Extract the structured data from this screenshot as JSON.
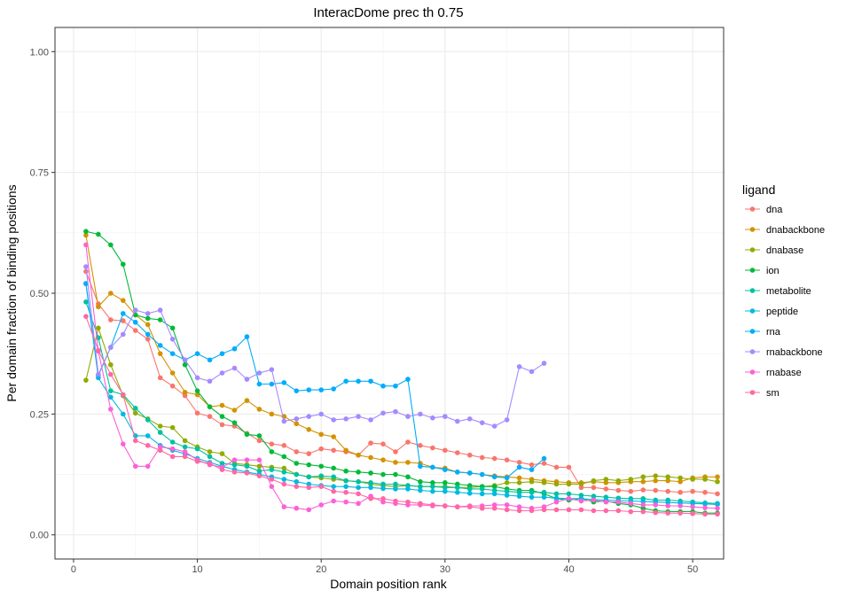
{
  "chart_data": {
    "type": "line",
    "title": "InteracDome prec th 0.75",
    "xlabel": "Domain position rank",
    "ylabel": "Per domain fraction of binding positions",
    "xlim": [
      -1.5,
      52.5
    ],
    "ylim": [
      -0.05,
      1.05
    ],
    "xticks": [
      0,
      10,
      20,
      30,
      40,
      50
    ],
    "xtick_labels": [
      "0",
      "10",
      "20",
      "30",
      "40",
      "50"
    ],
    "yticks": [
      0,
      0.25,
      0.5,
      0.75,
      1.0
    ],
    "ytick_labels": [
      "0.00",
      "0.25",
      "0.50",
      "0.75",
      "1.00"
    ],
    "grid": true,
    "legend": {
      "title": "ligand",
      "position": "right"
    },
    "series": [
      {
        "name": "dna",
        "color": "#F8766D",
        "x": [
          1,
          2,
          3,
          4,
          5,
          6,
          7,
          8,
          9,
          10,
          11,
          12,
          13,
          14,
          15,
          16,
          17,
          18,
          19,
          20,
          21,
          22,
          23,
          24,
          25,
          26,
          27,
          28,
          29,
          30,
          31,
          32,
          33,
          34,
          35,
          36,
          37,
          38,
          39,
          40,
          41,
          42,
          43,
          44,
          45,
          46,
          47,
          48,
          49,
          50,
          51,
          52
        ],
        "values": [
          0.545,
          0.478,
          0.445,
          0.443,
          0.423,
          0.405,
          0.325,
          0.308,
          0.288,
          0.252,
          0.245,
          0.228,
          0.225,
          0.21,
          0.195,
          0.188,
          0.185,
          0.172,
          0.168,
          0.178,
          0.175,
          0.172,
          0.165,
          0.19,
          0.188,
          0.172,
          0.192,
          0.185,
          0.18,
          0.175,
          0.17,
          0.165,
          0.16,
          0.158,
          0.155,
          0.15,
          0.145,
          0.148,
          0.14,
          0.14,
          0.098,
          0.098,
          0.095,
          0.092,
          0.09,
          0.093,
          0.092,
          0.09,
          0.088,
          0.09,
          0.088,
          0.085
        ]
      },
      {
        "name": "dnabackbone",
        "color": "#D39200",
        "x": [
          1,
          2,
          3,
          4,
          5,
          6,
          7,
          8,
          9,
          10,
          11,
          12,
          13,
          14,
          15,
          16,
          17,
          18,
          19,
          20,
          21,
          22,
          23,
          24,
          25,
          26,
          27,
          28,
          29,
          30,
          31,
          32,
          33,
          34,
          35,
          36,
          37,
          38,
          39,
          40,
          41,
          42,
          43,
          44,
          45,
          46,
          47,
          48,
          49,
          50,
          51,
          52
        ],
        "values": [
          0.62,
          0.472,
          0.5,
          0.485,
          0.455,
          0.435,
          0.375,
          0.335,
          0.295,
          0.29,
          0.265,
          0.268,
          0.258,
          0.278,
          0.26,
          0.25,
          0.245,
          0.23,
          0.218,
          0.208,
          0.203,
          0.175,
          0.165,
          0.16,
          0.155,
          0.15,
          0.15,
          0.148,
          0.14,
          0.138,
          0.13,
          0.128,
          0.125,
          0.122,
          0.12,
          0.118,
          0.115,
          0.112,
          0.11,
          0.108,
          0.108,
          0.11,
          0.108,
          0.108,
          0.11,
          0.11,
          0.112,
          0.112,
          0.11,
          0.118,
          0.12,
          0.12
        ]
      },
      {
        "name": "dnabase",
        "color": "#93AA00",
        "x": [
          1,
          2,
          3,
          4,
          5,
          6,
          7,
          8,
          9,
          10,
          11,
          12,
          13,
          14,
          15,
          16,
          17,
          18,
          19,
          20,
          21,
          22,
          23,
          24,
          25,
          26,
          27,
          28,
          29,
          30,
          31,
          32,
          33,
          34,
          35,
          36,
          37,
          38,
          39,
          40,
          41,
          42,
          43,
          44,
          45,
          46,
          47,
          48,
          49,
          50,
          51,
          52
        ],
        "values": [
          0.32,
          0.428,
          0.352,
          0.288,
          0.252,
          0.24,
          0.225,
          0.222,
          0.195,
          0.182,
          0.172,
          0.168,
          0.148,
          0.145,
          0.142,
          0.14,
          0.138,
          0.125,
          0.12,
          0.118,
          0.115,
          0.112,
          0.11,
          0.105,
          0.102,
          0.1,
          0.102,
          0.1,
          0.1,
          0.1,
          0.098,
          0.098,
          0.1,
          0.102,
          0.108,
          0.108,
          0.11,
          0.108,
          0.105,
          0.105,
          0.105,
          0.112,
          0.115,
          0.112,
          0.115,
          0.12,
          0.122,
          0.12,
          0.118,
          0.115,
          0.115,
          0.11
        ]
      },
      {
        "name": "ion",
        "color": "#00BA38",
        "x": [
          1,
          2,
          3,
          4,
          5,
          6,
          7,
          8,
          9,
          10,
          11,
          12,
          13,
          14,
          15,
          16,
          17,
          18,
          19,
          20,
          21,
          22,
          23,
          24,
          25,
          26,
          27,
          28,
          29,
          30,
          31,
          32,
          33,
          34,
          35,
          36,
          37,
          38,
          39,
          40,
          41,
          42,
          43,
          44,
          45,
          46,
          47,
          48,
          49,
          50,
          51,
          52
        ],
        "values": [
          0.628,
          0.622,
          0.6,
          0.56,
          0.455,
          0.448,
          0.445,
          0.428,
          0.352,
          0.298,
          0.265,
          0.245,
          0.232,
          0.208,
          0.205,
          0.172,
          0.162,
          0.148,
          0.145,
          0.142,
          0.138,
          0.132,
          0.13,
          0.128,
          0.125,
          0.125,
          0.12,
          0.11,
          0.108,
          0.108,
          0.105,
          0.102,
          0.1,
          0.1,
          0.095,
          0.092,
          0.092,
          0.085,
          0.075,
          0.072,
          0.075,
          0.068,
          0.07,
          0.065,
          0.062,
          0.055,
          0.05,
          0.048,
          0.048,
          0.048,
          0.045,
          0.045
        ]
      },
      {
        "name": "metabolite",
        "color": "#00C19F",
        "x": [
          1,
          2,
          3,
          4,
          5,
          6,
          7,
          8,
          9,
          10,
          11,
          12,
          13,
          14,
          15,
          16,
          17,
          18,
          19,
          20,
          21,
          22,
          23,
          24,
          25,
          26,
          27,
          28,
          29,
          30,
          31,
          32,
          33,
          34,
          35,
          36,
          37,
          38,
          39,
          40,
          41,
          42,
          43,
          44,
          45,
          46,
          47,
          48,
          49,
          50,
          51,
          52
        ],
        "values": [
          0.482,
          0.408,
          0.298,
          0.29,
          0.262,
          0.238,
          0.212,
          0.192,
          0.182,
          0.178,
          0.162,
          0.148,
          0.145,
          0.142,
          0.132,
          0.135,
          0.13,
          0.125,
          0.12,
          0.122,
          0.12,
          0.112,
          0.11,
          0.108,
          0.105,
          0.105,
          0.102,
          0.1,
          0.1,
          0.098,
          0.098,
          0.095,
          0.095,
          0.092,
          0.09,
          0.088,
          0.088,
          0.088,
          0.085,
          0.085,
          0.082,
          0.08,
          0.078,
          0.076,
          0.075,
          0.075,
          0.072,
          0.072,
          0.07,
          0.068,
          0.066,
          0.065
        ]
      },
      {
        "name": "peptide",
        "color": "#00B9E3",
        "x": [
          1,
          2,
          3,
          4,
          5,
          6,
          7,
          8,
          9,
          10,
          11,
          12,
          13,
          14,
          15,
          16,
          17,
          18,
          19,
          20,
          21,
          22,
          23,
          24,
          25,
          26,
          27,
          28,
          29,
          30,
          31,
          32,
          33,
          34,
          35,
          36,
          37,
          38,
          39,
          40,
          41,
          42,
          43,
          44,
          45,
          46,
          47,
          48,
          49,
          50,
          51,
          52
        ],
        "values": [
          0.52,
          0.325,
          0.285,
          0.25,
          0.205,
          0.205,
          0.185,
          0.175,
          0.168,
          0.158,
          0.15,
          0.142,
          0.135,
          0.13,
          0.125,
          0.12,
          0.115,
          0.11,
          0.105,
          0.102,
          0.1,
          0.1,
          0.098,
          0.098,
          0.096,
          0.095,
          0.095,
          0.092,
          0.09,
          0.09,
          0.088,
          0.086,
          0.085,
          0.085,
          0.082,
          0.08,
          0.078,
          0.078,
          0.076,
          0.075,
          0.075,
          0.073,
          0.072,
          0.071,
          0.07,
          0.069,
          0.068,
          0.067,
          0.066,
          0.065,
          0.064,
          0.063
        ]
      },
      {
        "name": "rna",
        "color": "#00ADFA",
        "x": [
          1,
          2,
          3,
          4,
          5,
          6,
          7,
          8,
          9,
          10,
          11,
          12,
          13,
          14,
          15,
          16,
          17,
          18,
          19,
          20,
          21,
          22,
          23,
          24,
          25,
          26,
          27,
          28,
          29,
          30,
          31,
          32,
          33,
          34,
          35,
          36,
          37,
          38
        ],
        "values": [
          0.52,
          0.33,
          0.388,
          0.458,
          0.44,
          0.415,
          0.392,
          0.375,
          0.362,
          0.375,
          0.362,
          0.375,
          0.385,
          0.41,
          0.312,
          0.312,
          0.315,
          0.298,
          0.3,
          0.3,
          0.302,
          0.318,
          0.318,
          0.318,
          0.308,
          0.308,
          0.322,
          0.142,
          0.14,
          0.135,
          0.13,
          0.128,
          0.125,
          0.12,
          0.118,
          0.14,
          0.135,
          0.158
        ]
      },
      {
        "name": "rnabackbone",
        "color": "#A58AFF",
        "x": [
          1,
          2,
          3,
          4,
          5,
          6,
          7,
          8,
          9,
          10,
          11,
          12,
          13,
          14,
          15,
          16,
          17,
          18,
          19,
          20,
          21,
          22,
          23,
          24,
          25,
          26,
          27,
          28,
          29,
          30,
          31,
          32,
          33,
          34,
          35,
          36,
          37,
          38
        ],
        "values": [
          0.555,
          0.332,
          0.388,
          0.415,
          0.465,
          0.458,
          0.465,
          0.405,
          0.362,
          0.325,
          0.318,
          0.335,
          0.345,
          0.322,
          0.335,
          0.342,
          0.235,
          0.24,
          0.245,
          0.25,
          0.238,
          0.24,
          0.245,
          0.238,
          0.252,
          0.255,
          0.245,
          0.25,
          0.242,
          0.245,
          0.235,
          0.24,
          0.232,
          0.225,
          0.238,
          0.348,
          0.338,
          0.355
        ]
      },
      {
        "name": "rnabase",
        "color": "#FB61D7",
        "x": [
          1,
          2,
          3,
          4,
          5,
          6,
          7,
          8,
          9,
          10,
          11,
          12,
          13,
          14,
          15,
          16,
          17,
          18,
          19,
          20,
          21,
          22,
          23,
          24,
          25,
          26,
          27,
          28,
          29,
          30,
          31,
          32,
          33,
          34,
          35,
          36,
          37,
          38,
          39,
          40,
          41,
          42,
          43,
          44,
          45,
          46,
          47,
          48,
          49,
          50,
          51,
          52
        ],
        "values": [
          0.6,
          0.38,
          0.26,
          0.188,
          0.142,
          0.142,
          0.182,
          0.178,
          0.172,
          0.155,
          0.145,
          0.14,
          0.155,
          0.155,
          0.155,
          0.1,
          0.058,
          0.055,
          0.052,
          0.062,
          0.07,
          0.068,
          0.065,
          0.08,
          0.068,
          0.065,
          0.062,
          0.062,
          0.06,
          0.06,
          0.058,
          0.06,
          0.06,
          0.062,
          0.062,
          0.058,
          0.055,
          0.058,
          0.068,
          0.075,
          0.07,
          0.072,
          0.068,
          0.068,
          0.065,
          0.062,
          0.062,
          0.06,
          0.06,
          0.058,
          0.056,
          0.055
        ]
      },
      {
        "name": "sm",
        "color": "#FF67A4",
        "x": [
          1,
          2,
          3,
          4,
          5,
          6,
          7,
          8,
          9,
          10,
          11,
          12,
          13,
          14,
          15,
          16,
          17,
          18,
          19,
          20,
          21,
          22,
          23,
          24,
          25,
          26,
          27,
          28,
          29,
          30,
          31,
          32,
          33,
          34,
          35,
          36,
          37,
          38,
          39,
          40,
          41,
          42,
          43,
          44,
          45,
          46,
          47,
          48,
          49,
          50,
          51,
          52
        ],
        "values": [
          0.452,
          0.382,
          0.332,
          0.29,
          0.195,
          0.185,
          0.175,
          0.162,
          0.162,
          0.152,
          0.148,
          0.135,
          0.13,
          0.128,
          0.122,
          0.115,
          0.105,
          0.1,
          0.098,
          0.1,
          0.09,
          0.088,
          0.085,
          0.075,
          0.075,
          0.07,
          0.068,
          0.065,
          0.062,
          0.06,
          0.058,
          0.058,
          0.055,
          0.055,
          0.052,
          0.05,
          0.05,
          0.052,
          0.052,
          0.052,
          0.052,
          0.05,
          0.05,
          0.05,
          0.048,
          0.048,
          0.046,
          0.045,
          0.045,
          0.044,
          0.043,
          0.043
        ]
      }
    ]
  }
}
